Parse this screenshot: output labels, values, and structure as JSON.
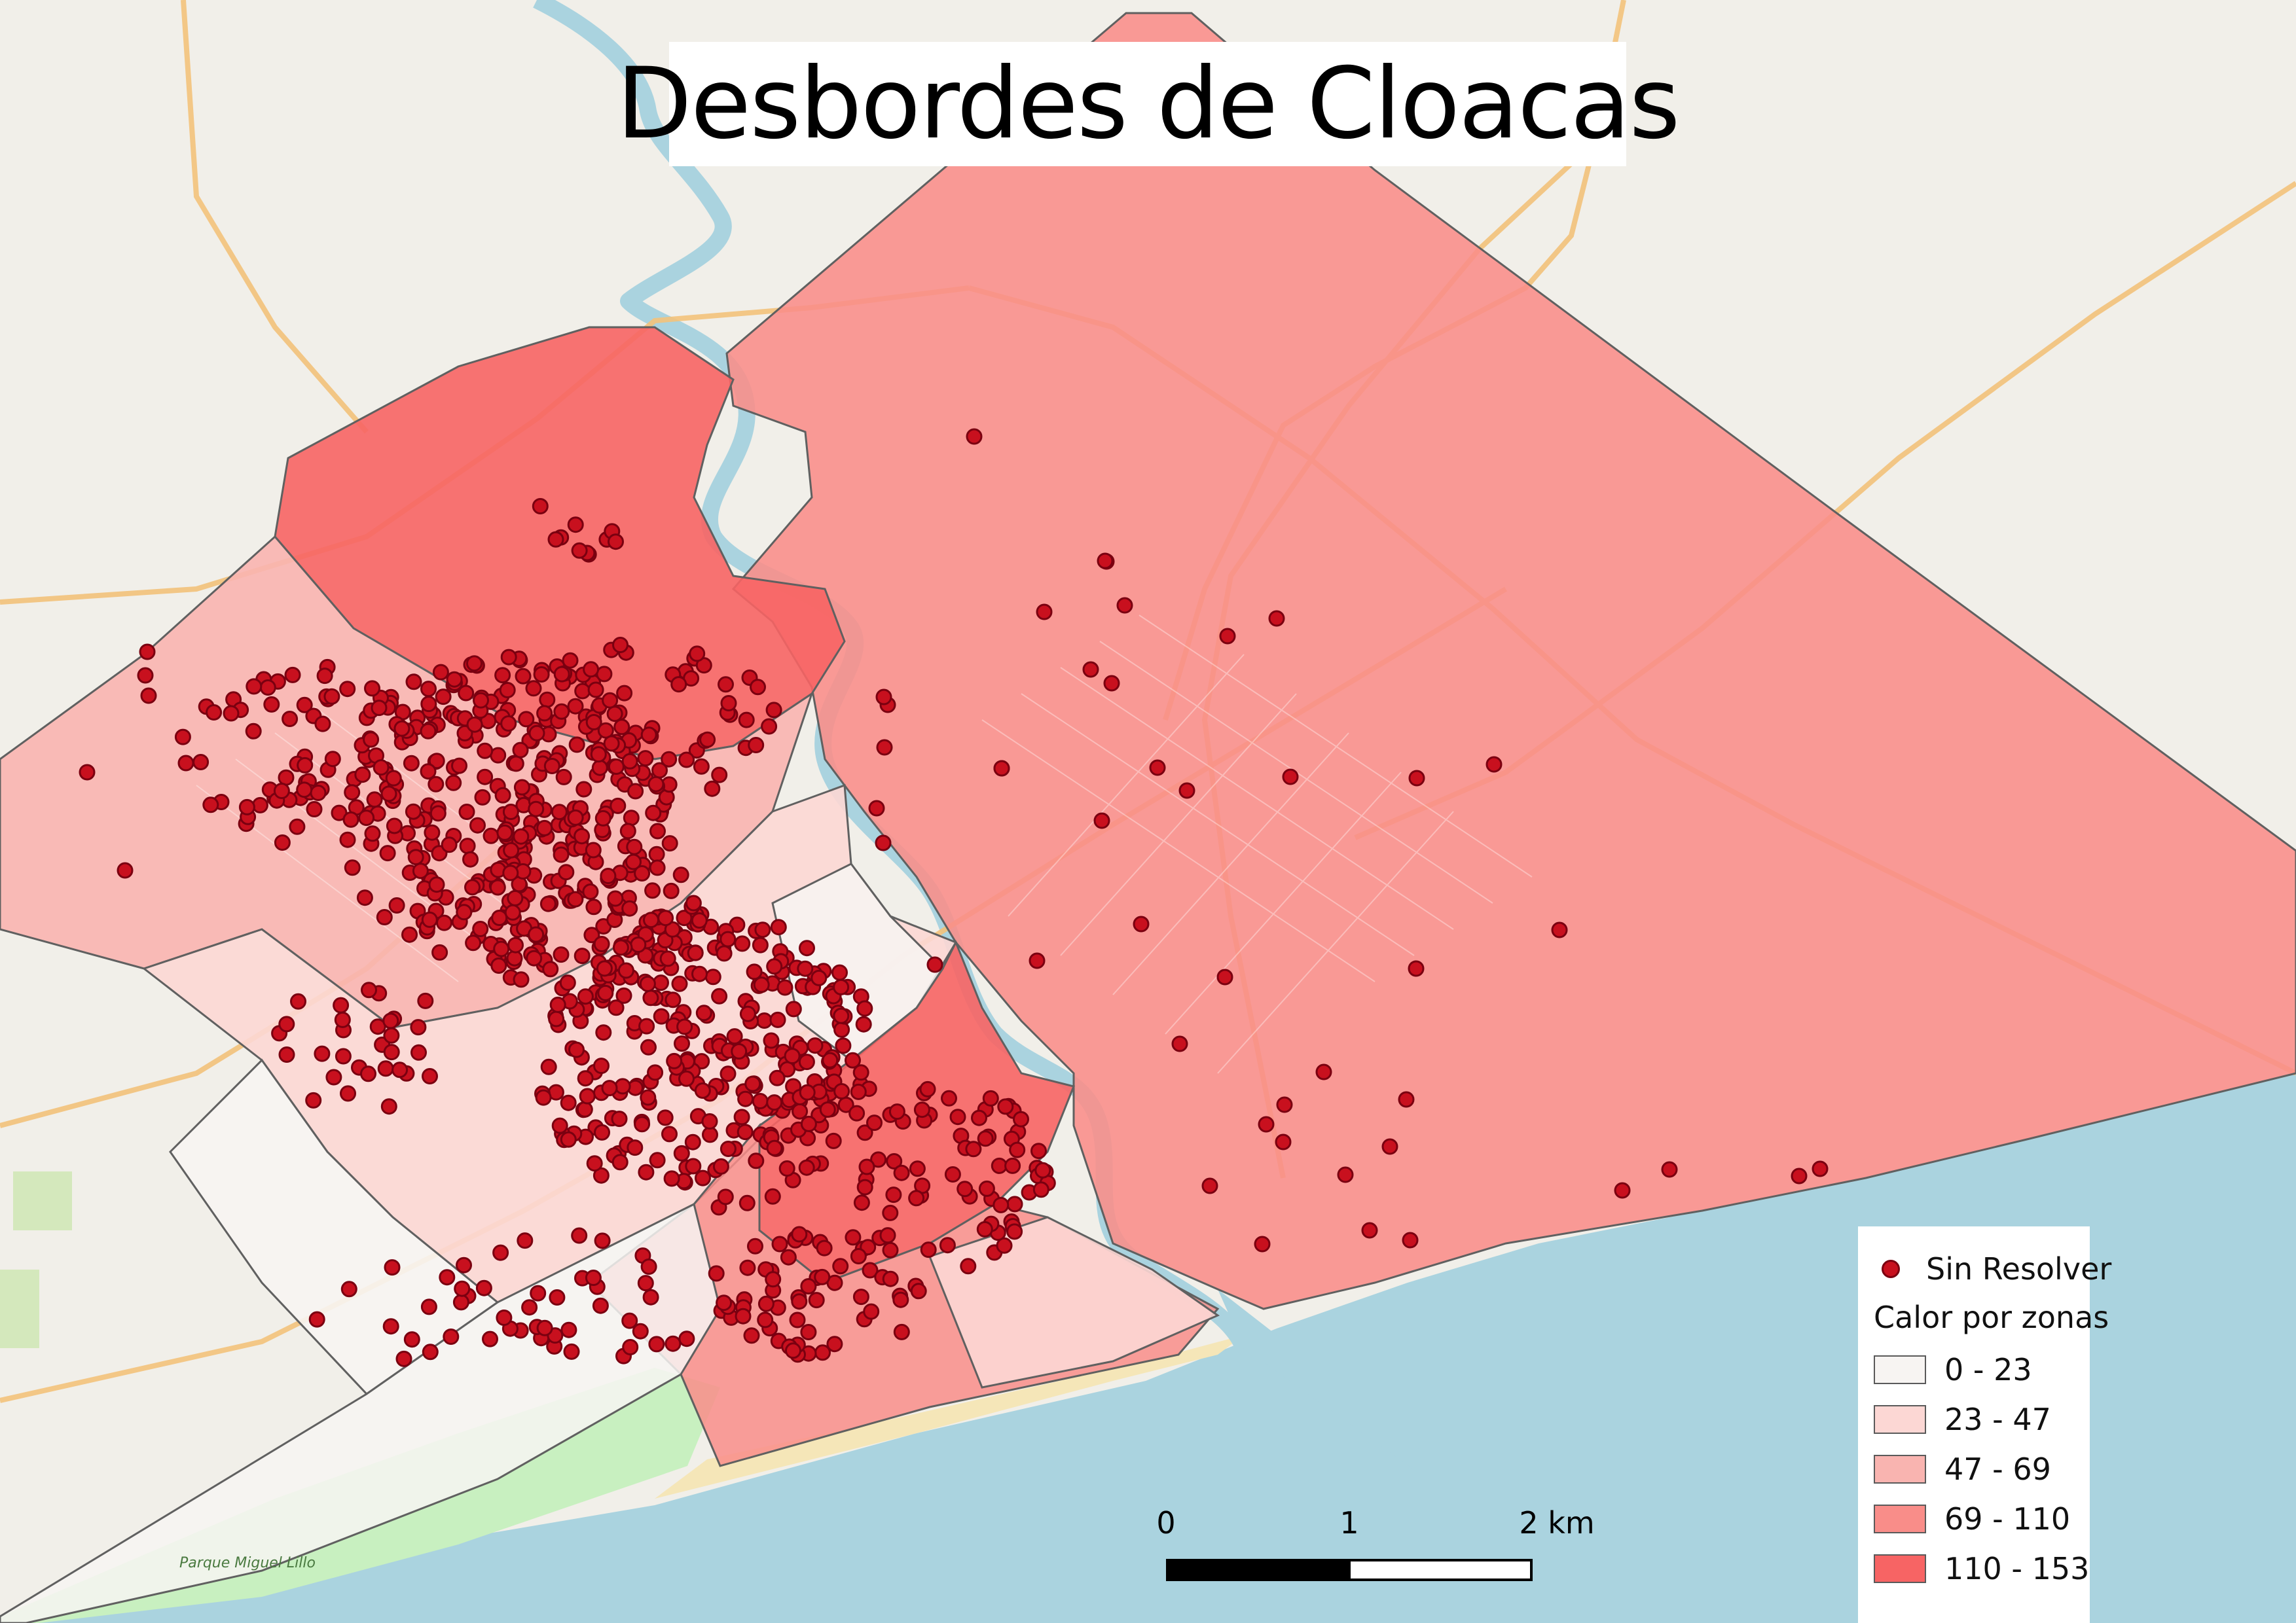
{
  "title": "Desbordes de Cloacas",
  "legend": {
    "points_label": "Sin Resolver",
    "zones_title": "Calor por zonas",
    "classes": [
      {
        "label": "0 - 23",
        "color": "#f7f4f2"
      },
      {
        "label": "23 - 47",
        "color": "#fcd7d4"
      },
      {
        "label": "47 - 69",
        "color": "#f9b4b0"
      },
      {
        "label": "69 - 110",
        "color": "#f98d89"
      },
      {
        "label": "110 - 153",
        "color": "#f76464"
      }
    ]
  },
  "scale_bar": {
    "labels": [
      "0",
      "1",
      "2 km"
    ]
  },
  "colors": {
    "background": "#f1efe9",
    "sea": "#aad3df",
    "river": "#aad3df",
    "park": "#c8f0c0",
    "road": "#f3c27b",
    "point_fill": "#c8101e",
    "point_stroke": "#7a0010",
    "zone_stroke": "#606060"
  },
  "map_labels": {
    "park_name": "Parque Miguel Lillo"
  },
  "points_count_visible": "Sin Resolver"
}
